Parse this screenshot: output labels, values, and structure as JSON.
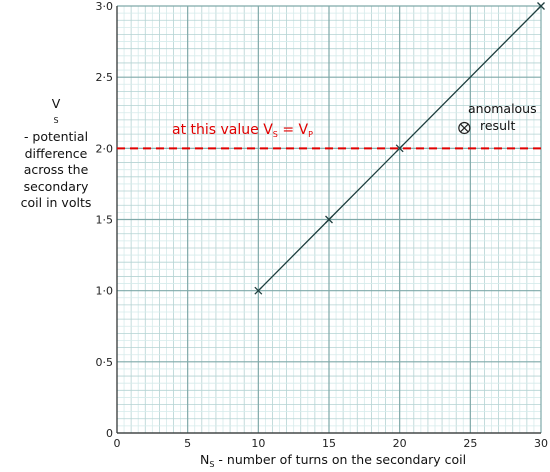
{
  "chart_data": {
    "type": "line",
    "title": "",
    "xlabel": "number of turns on the secondary coil",
    "ylabel_lines": [
      "- potential",
      "difference",
      "across the",
      "secondary",
      "coil in volts"
    ],
    "x_symbol": "N",
    "x_symbol_sub": "S",
    "y_symbol": "V",
    "y_symbol_sub": "S",
    "xlim": [
      0,
      30
    ],
    "ylim": [
      0,
      3.0
    ],
    "x_ticks": [
      0,
      5,
      10,
      15,
      20,
      25,
      30
    ],
    "x_tick_labels": [
      "0",
      "5",
      "10",
      "15",
      "20",
      "25",
      "30"
    ],
    "y_ticks": [
      0,
      0.5,
      1.0,
      1.5,
      2.0,
      2.5,
      3.0
    ],
    "y_tick_labels": [
      "0",
      "0·5",
      "1·0",
      "1·5",
      "2·0",
      "2·5",
      "3·0"
    ],
    "grid": true,
    "series": [
      {
        "x": [
          10,
          15,
          20,
          30
        ],
        "y": [
          1.0,
          1.5,
          2.0,
          3.0
        ],
        "color": "#1f3f3f"
      }
    ],
    "anomalous_point": {
      "x": 25,
      "y": 2.15,
      "label_line1": "anomalous",
      "label_line2": "result"
    },
    "reference_line": {
      "y": 2.0,
      "color": "#e00000",
      "label_text": "at this value V",
      "label_sub1": "S",
      "label_eq": " = V",
      "label_sub2": "P"
    }
  }
}
